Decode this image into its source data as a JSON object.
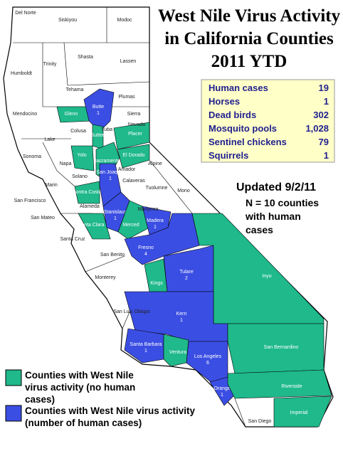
{
  "title": [
    "West Nile Virus Activity",
    "in California Counties",
    "2011 YTD"
  ],
  "stats": [
    {
      "label": "Human cases",
      "value": "19"
    },
    {
      "label": "Horses",
      "value": "1"
    },
    {
      "label": "Dead birds",
      "value": "302"
    },
    {
      "label": "Mosquito pools",
      "value": "1,028"
    },
    {
      "label": "Sentinel chickens",
      "value": "79"
    },
    {
      "label": "Squirrels",
      "value": "1"
    }
  ],
  "updated": "Updated 9/2/11",
  "note": [
    "N = 10 counties",
    "with human",
    "cases"
  ],
  "legend": [
    {
      "color": "#1fb98b",
      "lines": [
        "Counties with West Nile",
        "virus activity (no human",
        "cases)"
      ]
    },
    {
      "color": "#3b4ee3",
      "lines": [
        "Counties with West Nile virus activity",
        "(number of human cases)"
      ]
    }
  ],
  "counties": [
    {
      "name": "Glenn",
      "color": "#1fb98b"
    },
    {
      "name": "Butte",
      "color": "#3b4ee3",
      "cases": "1"
    },
    {
      "name": "Sutter",
      "color": "#1fb98b"
    },
    {
      "name": "Yolo",
      "color": "#1fb98b"
    },
    {
      "name": "Sacramento",
      "color": "#1fb98b"
    },
    {
      "name": "Placer",
      "color": "#1fb98b"
    },
    {
      "name": "El Dorado",
      "color": "#1fb98b"
    },
    {
      "name": "Contra Costa",
      "color": "#1fb98b"
    },
    {
      "name": "Santa Clara",
      "color": "#1fb98b"
    },
    {
      "name": "San Joaquin",
      "color": "#3b4ee3",
      "cases": "1"
    },
    {
      "name": "Stanislaus",
      "color": "#3b4ee3",
      "cases": "1"
    },
    {
      "name": "Merced",
      "color": "#1fb98b"
    },
    {
      "name": "Madera",
      "color": "#3b4ee3",
      "cases": "1"
    },
    {
      "name": "Fresno",
      "color": "#3b4ee3",
      "cases": "4"
    },
    {
      "name": "Tulare",
      "color": "#3b4ee3",
      "cases": "2"
    },
    {
      "name": "Kings",
      "color": "#1fb98b"
    },
    {
      "name": "Inyo",
      "color": "#1fb98b"
    },
    {
      "name": "Kern",
      "color": "#3b4ee3",
      "cases": "1"
    },
    {
      "name": "San Bernardino",
      "color": "#1fb98b"
    },
    {
      "name": "Santa Barbara",
      "color": "#3b4ee3",
      "cases": "1"
    },
    {
      "name": "Ventura",
      "color": "#1fb98b"
    },
    {
      "name": "Los Angeles",
      "color": "#3b4ee3",
      "cases": "6"
    },
    {
      "name": "Orange",
      "color": "#3b4ee3",
      "cases": "1"
    },
    {
      "name": "Riverside",
      "color": "#1fb98b"
    },
    {
      "name": "Imperial",
      "color": "#1fb98b"
    },
    {
      "name": "Del Norte"
    },
    {
      "name": "Siskiyou"
    },
    {
      "name": "Modoc"
    },
    {
      "name": "Humboldt"
    },
    {
      "name": "Trinity"
    },
    {
      "name": "Shasta"
    },
    {
      "name": "Lassen"
    },
    {
      "name": "Tehama"
    },
    {
      "name": "Plumas"
    },
    {
      "name": "Mendocino"
    },
    {
      "name": "Colusa"
    },
    {
      "name": "Sierra"
    },
    {
      "name": "Nevada"
    },
    {
      "name": "Yuba"
    },
    {
      "name": "Lake"
    },
    {
      "name": "Sonoma"
    },
    {
      "name": "Napa"
    },
    {
      "name": "Solano"
    },
    {
      "name": "Marin"
    },
    {
      "name": "Alameda"
    },
    {
      "name": "Amador"
    },
    {
      "name": "Alpine"
    },
    {
      "name": "Calaveras"
    },
    {
      "name": "San Francisco"
    },
    {
      "name": "Tuolumne"
    },
    {
      "name": "Mono"
    },
    {
      "name": "San Mateo"
    },
    {
      "name": "Mariposa"
    },
    {
      "name": "Santa Cruz"
    },
    {
      "name": "San Benito"
    },
    {
      "name": "Monterey"
    },
    {
      "name": "San Luis Obispo"
    },
    {
      "name": "San Diego"
    }
  ]
}
